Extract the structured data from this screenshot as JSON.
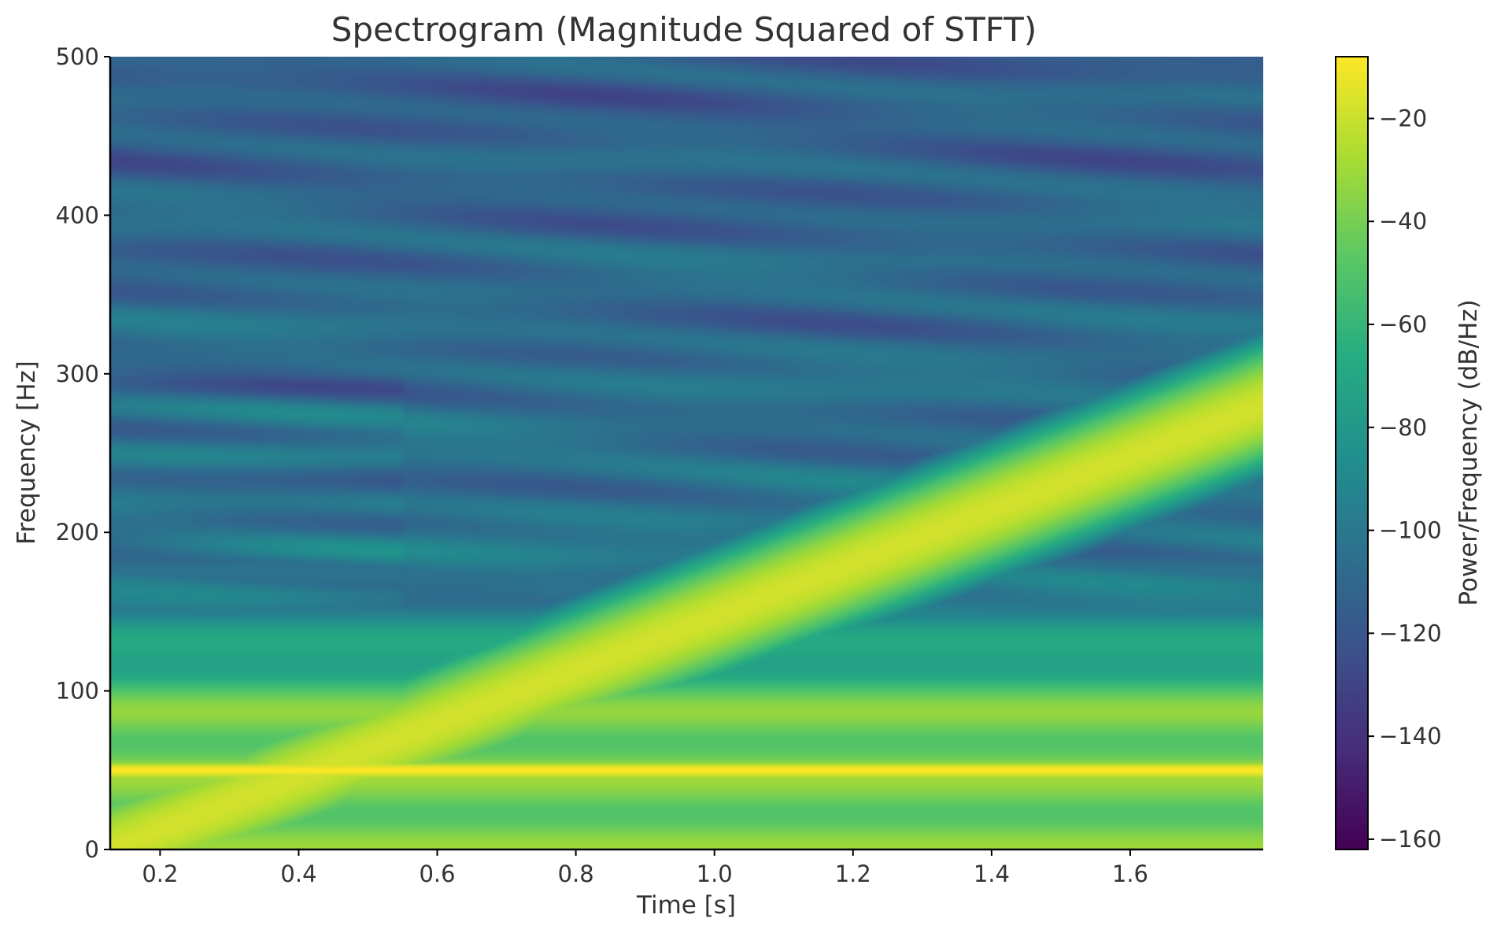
{
  "chart_data": {
    "type": "heatmap",
    "title": "Spectrogram (Magnitude Squared of STFT)",
    "xlabel": "Time [s]",
    "ylabel": "Frequency [Hz]",
    "xlim": [
      0.128,
      1.792
    ],
    "ylim": [
      0,
      500
    ],
    "x_ticks": [
      0.2,
      0.4,
      0.6,
      0.8,
      1.0,
      1.2,
      1.4,
      1.6
    ],
    "x_tick_labels": [
      "0.2",
      "0.4",
      "0.6",
      "0.8",
      "1.0",
      "1.2",
      "1.4",
      "1.6"
    ],
    "y_ticks": [
      0,
      100,
      200,
      300,
      400,
      500
    ],
    "y_tick_labels": [
      "0",
      "100",
      "200",
      "300",
      "400",
      "500"
    ],
    "colormap": "viridis",
    "colorbar": {
      "label": "Power/Frequency (dB/Hz)",
      "range": [
        -162,
        -8
      ],
      "ticks": [
        -20,
        -40,
        -60,
        -80,
        -100,
        -120,
        -140,
        -160
      ],
      "tick_labels": [
        "−20",
        "−40",
        "−60",
        "−80",
        "−100",
        "−120",
        "−140",
        "−160"
      ]
    },
    "features": [
      {
        "kind": "chirp",
        "t_start": 0.128,
        "f_start": 0,
        "t_end": 1.792,
        "f_end": 280,
        "level_db": -18
      },
      {
        "kind": "tone",
        "freq_hz": 50,
        "level_db": -8
      },
      {
        "kind": "band",
        "f_low": 0,
        "f_high": 85,
        "level_db": -40
      },
      {
        "kind": "background",
        "level_db": -95
      }
    ]
  },
  "colors": {
    "text": "#333333",
    "spine": "#000000",
    "background": "#ffffff"
  }
}
